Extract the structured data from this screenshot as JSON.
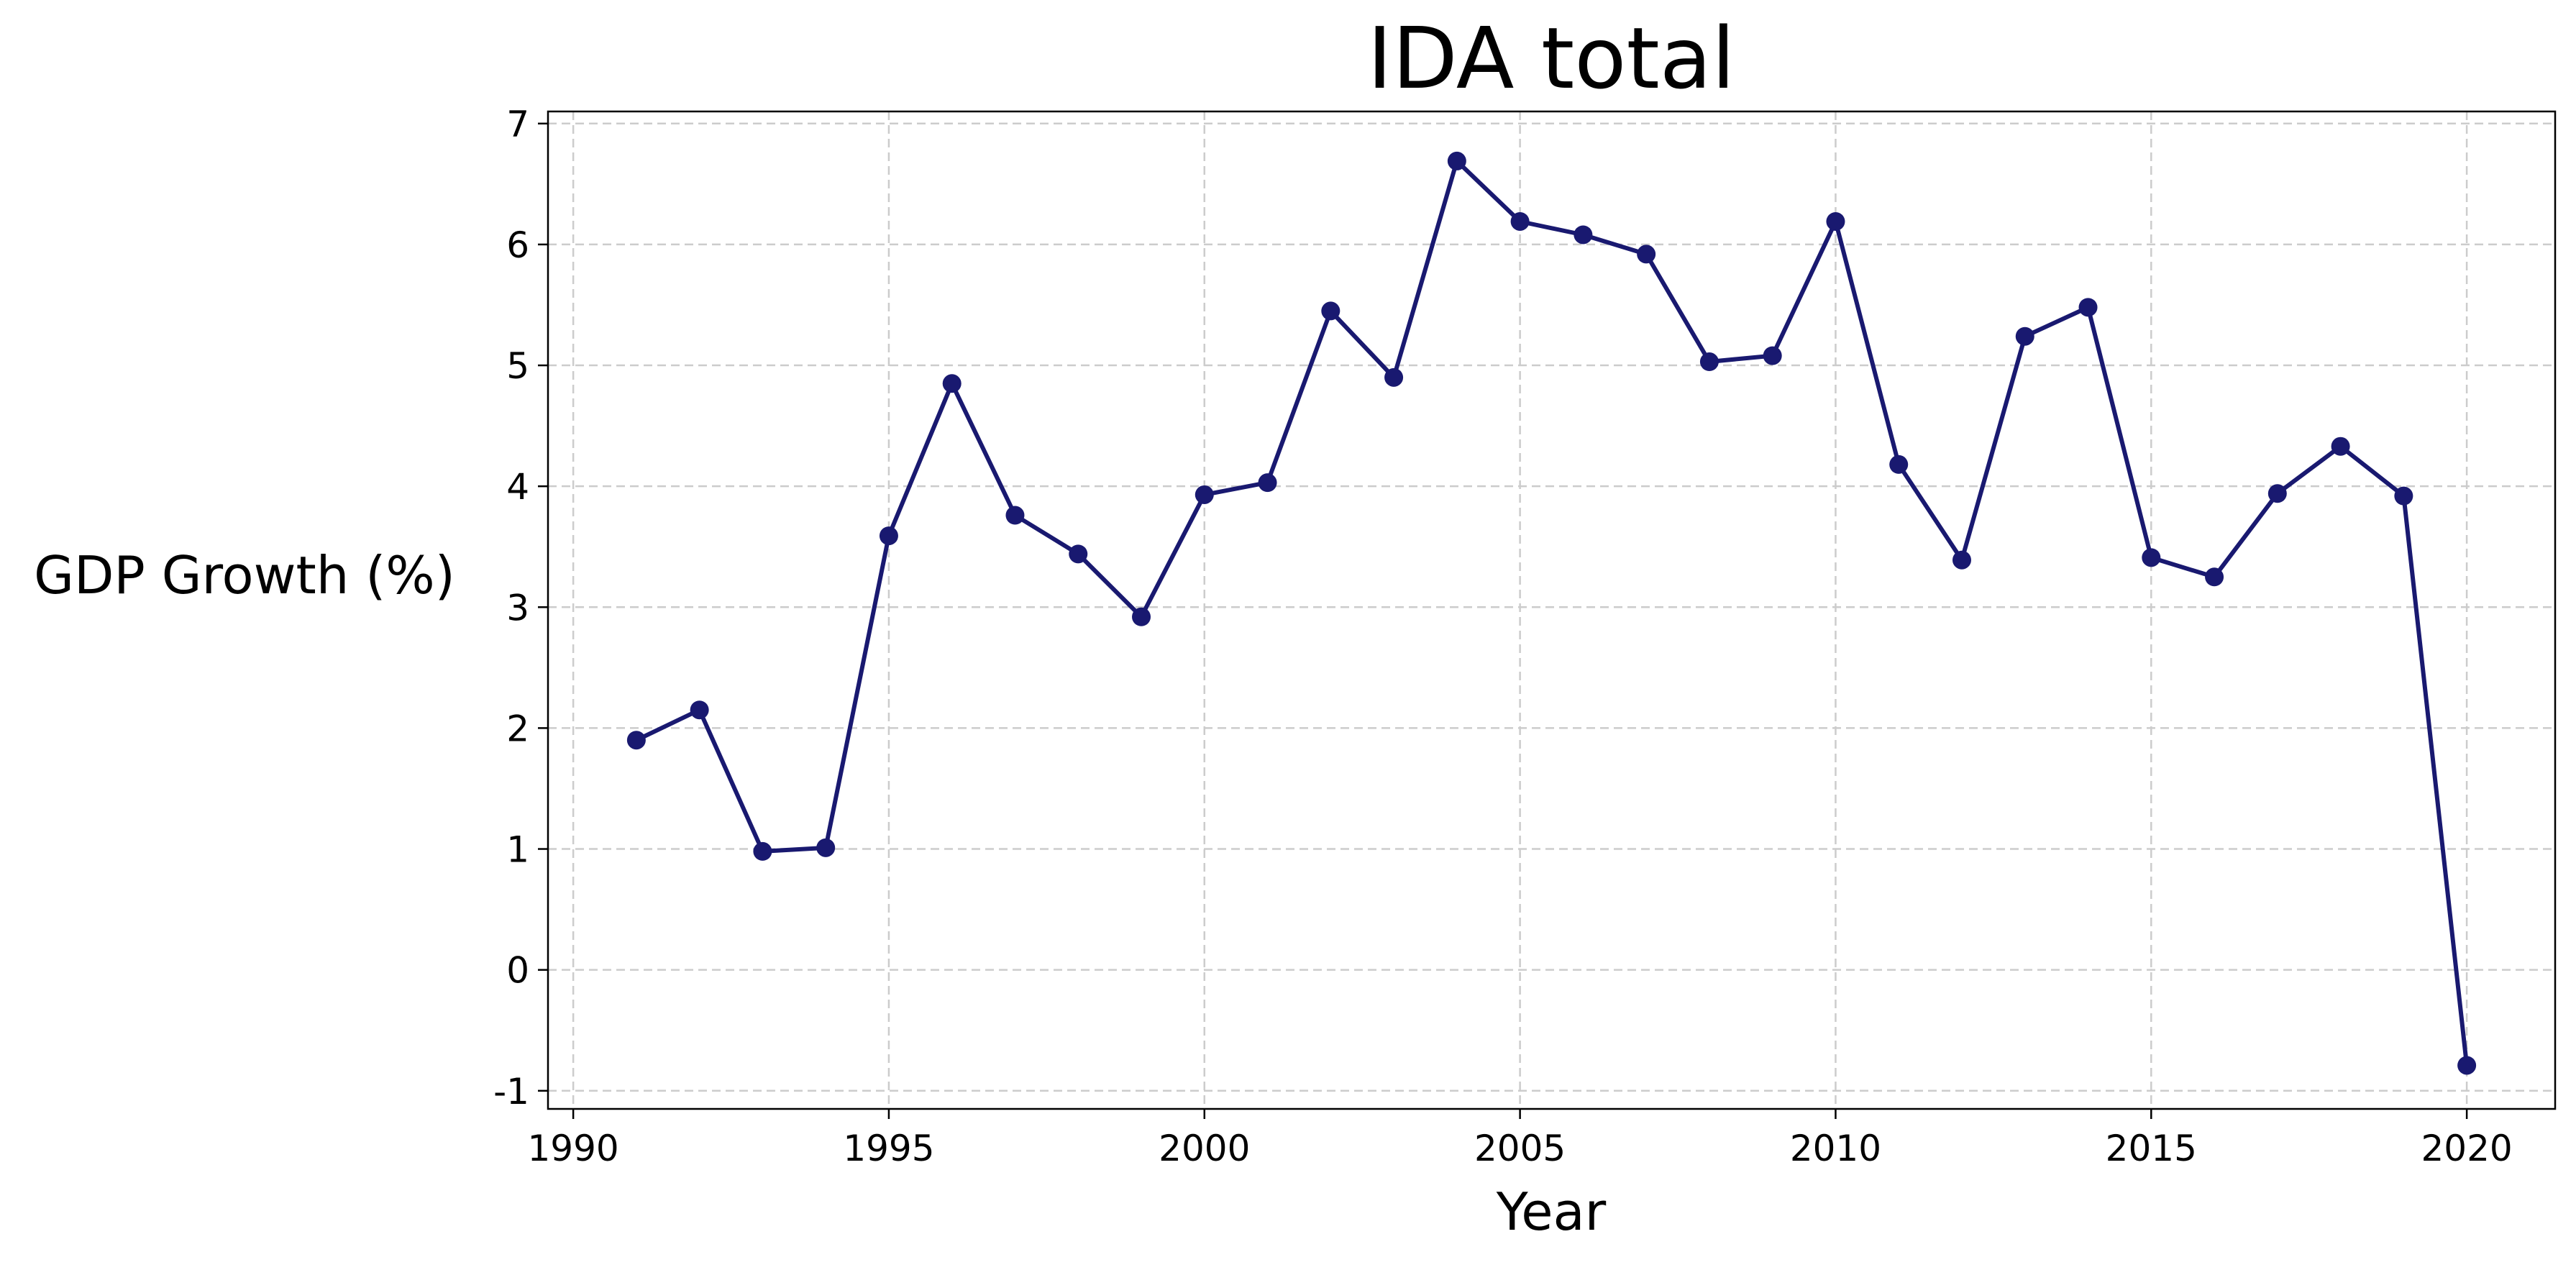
{
  "chart_data": {
    "type": "line",
    "title": "IDA total",
    "xlabel": "Year",
    "ylabel": "GDP Growth (%)",
    "xlim": [
      1989.6,
      2021.4
    ],
    "ylim": [
      -1.15,
      7.1
    ],
    "xticks": [
      1990,
      1995,
      2000,
      2005,
      2010,
      2015,
      2020
    ],
    "yticks": [
      -1,
      0,
      1,
      2,
      3,
      4,
      5,
      6,
      7
    ],
    "grid": true,
    "marker": "circle",
    "color": "#191970",
    "series": [
      {
        "x": [
          1991,
          1992,
          1993,
          1994,
          1995,
          1996,
          1997,
          1998,
          1999,
          2000,
          2001,
          2002,
          2003,
          2004,
          2005,
          2006,
          2007,
          2008,
          2009,
          2010,
          2011,
          2012,
          2013,
          2014,
          2015,
          2016,
          2017,
          2018,
          2019,
          2020
        ],
        "values": [
          1.9,
          2.15,
          0.98,
          1.01,
          3.59,
          4.85,
          3.76,
          3.44,
          2.92,
          3.93,
          4.03,
          5.45,
          4.9,
          6.69,
          6.19,
          6.08,
          5.92,
          5.03,
          5.08,
          6.19,
          4.18,
          3.39,
          5.24,
          5.48,
          3.41,
          3.25,
          3.94,
          4.33,
          3.92,
          -0.79
        ]
      }
    ]
  }
}
